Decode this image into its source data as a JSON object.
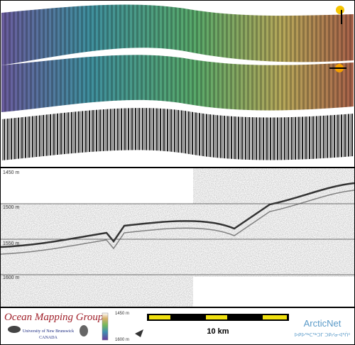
{
  "profile": {
    "depth_labels": [
      "1450 m",
      "1500 m",
      "1550 m",
      "1600 m"
    ]
  },
  "footer": {
    "group": "Ocean Mapping Group",
    "university": "University of New Brunswick",
    "country": "CANADA",
    "colorbar_top": "1450 m",
    "colorbar_bottom": "1600 m",
    "scale": "10 km",
    "partner": "ArcticNet",
    "partner_inuktitut": "ᐅᑭᐅᖅᑕᖅᑐᒥ ᑐᑭᓯᓂᐊᕐᑏᑦ"
  }
}
